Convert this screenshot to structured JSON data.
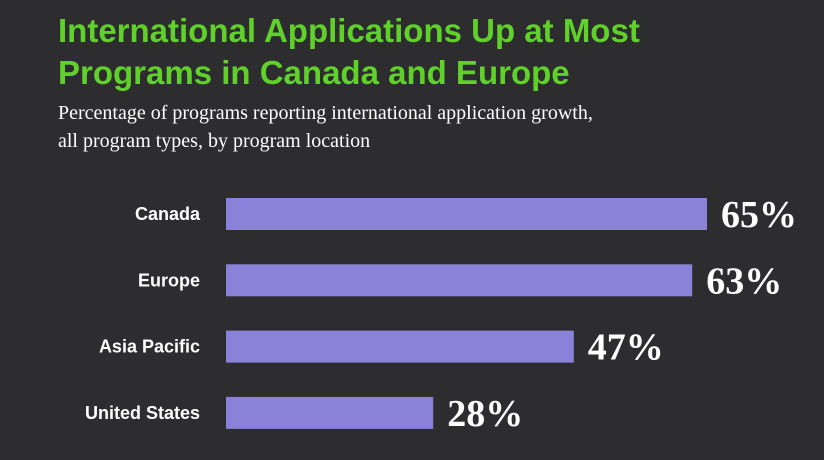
{
  "header": {
    "title_line1": "International Applications Up at Most",
    "title_line2": "Programs in Canada and Europe",
    "subtitle_line1": "Percentage of programs reporting international application growth,",
    "subtitle_line2": "all program types, by program location"
  },
  "colors": {
    "background": "#2d2c2e",
    "title": "#5fd12a",
    "bar": "#8982d8",
    "text": "#ffffff"
  },
  "chart_data": {
    "type": "bar",
    "orientation": "horizontal",
    "title": "International Applications Up at Most Programs in Canada and Europe",
    "subtitle": "Percentage of programs reporting international application growth, all program types, by program location",
    "categories": [
      "Canada",
      "Europe",
      "Asia Pacific",
      "United States"
    ],
    "values": [
      65,
      63,
      47,
      28
    ],
    "value_labels": [
      "65%",
      "63%",
      "47%",
      "28%"
    ],
    "xlabel": "",
    "ylabel": "",
    "xlim": [
      0,
      65
    ],
    "grid": false,
    "legend": "none"
  }
}
